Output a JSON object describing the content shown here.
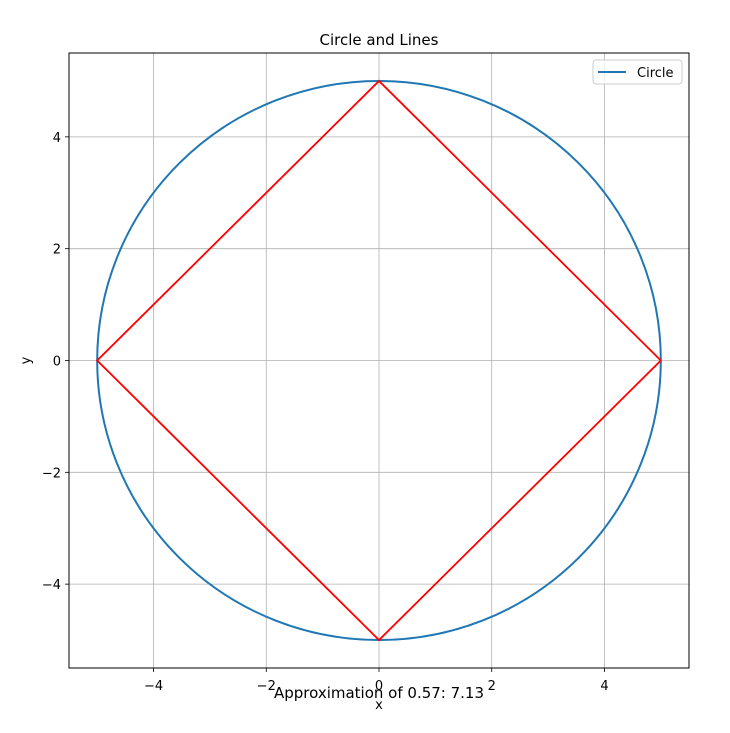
{
  "chart_data": {
    "type": "line",
    "title": "Circle and Lines",
    "xlabel": "x",
    "ylabel": "y",
    "xlim": [
      -5.5,
      5.5
    ],
    "ylim": [
      -5.5,
      5.5
    ],
    "xticks": [
      -4,
      -2,
      0,
      2,
      4
    ],
    "yticks": [
      -4,
      -2,
      0,
      2,
      4
    ],
    "grid": true,
    "legend_placement": "upper-right",
    "annotation": "Approximation of 0.57: 7.13",
    "series": [
      {
        "name": "Circle",
        "kind": "circle",
        "center": [
          0,
          0
        ],
        "radius": 5,
        "color": "#1f77b4",
        "in_legend": true
      },
      {
        "kind": "polyline",
        "color": "#ff0000",
        "in_legend": false,
        "x": [
          5,
          0,
          -5,
          0,
          5
        ],
        "y": [
          0,
          5,
          0,
          -5,
          0
        ]
      }
    ]
  }
}
